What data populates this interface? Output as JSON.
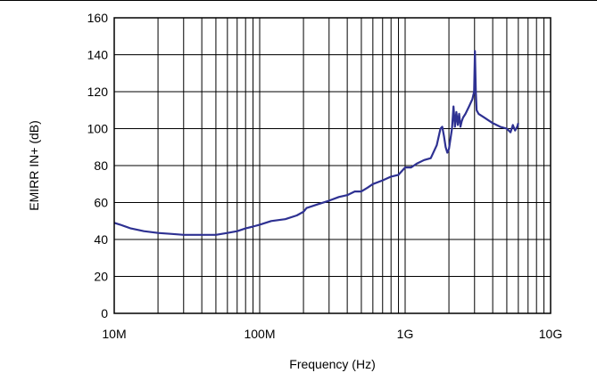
{
  "chart_data": {
    "type": "line",
    "title": "",
    "xlabel": "Frequency (Hz)",
    "ylabel": "EMIRR IN+ (dB)",
    "x_scale": "log",
    "xlim": [
      10000000,
      10000000000
    ],
    "ylim": [
      0,
      160
    ],
    "x_ticks": [
      {
        "value": 10000000,
        "label": "10M"
      },
      {
        "value": 100000000,
        "label": "100M"
      },
      {
        "value": 1000000000,
        "label": "1G"
      },
      {
        "value": 10000000000,
        "label": "10G"
      }
    ],
    "y_ticks": [
      0,
      20,
      40,
      60,
      80,
      100,
      120,
      140,
      160
    ],
    "y_tick_labels": [
      "0",
      "20",
      "40",
      "60",
      "80",
      "100",
      "120",
      "140",
      "160"
    ],
    "grid": true,
    "line_color": "#2e3192",
    "series": [
      {
        "x": [
          10000000,
          11000000,
          13000000,
          16000000,
          20000000,
          25000000,
          30000000,
          40000000,
          50000000,
          60000000,
          70000000,
          80000000,
          90000000,
          100000000,
          120000000,
          150000000,
          180000000,
          200000000,
          210000000,
          250000000,
          300000000,
          350000000,
          400000000,
          450000000,
          500000000,
          550000000,
          600000000,
          700000000,
          800000000,
          900000000,
          1000000000,
          1100000000,
          1200000000,
          1350000000,
          1500000000,
          1650000000,
          1750000000,
          1800000000,
          1850000000,
          1900000000,
          1950000000,
          2000000000,
          2100000000,
          2150000000,
          2200000000,
          2250000000,
          2300000000,
          2350000000,
          2400000000,
          2450000000,
          2500000000,
          2600000000,
          2750000000,
          2900000000,
          2980000000,
          3020000000,
          3060000000,
          3100000000,
          3200000000,
          3500000000,
          4000000000,
          4500000000,
          5000000000,
          5300000000,
          5500000000,
          5700000000,
          5900000000,
          6000000000
        ],
        "y": [
          49,
          48,
          46,
          44.5,
          43.5,
          43,
          42.5,
          42.5,
          42.5,
          43.5,
          44.5,
          46,
          47,
          48,
          50,
          51,
          53,
          55,
          57,
          59,
          61,
          63,
          64,
          66,
          66,
          68,
          70,
          72,
          74,
          75,
          79,
          79,
          81,
          83,
          84,
          91,
          100,
          101,
          96,
          90,
          87,
          89,
          100,
          112,
          101,
          109,
          102,
          108,
          101,
          104,
          106,
          108,
          112,
          116,
          120,
          142,
          120,
          110,
          108,
          106,
          103,
          101,
          100,
          98,
          102,
          99,
          101,
          103
        ]
      }
    ]
  }
}
